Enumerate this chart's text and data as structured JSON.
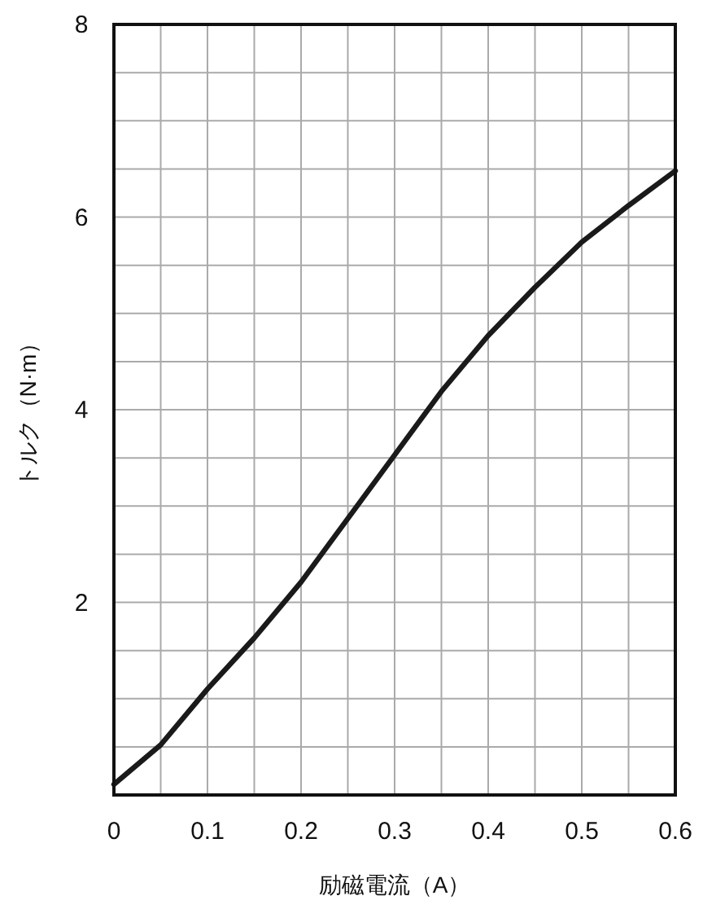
{
  "chart_data": {
    "type": "line",
    "xlabel": "励磁電流（A）",
    "ylabel": "トルク（N·m）",
    "x": [
      0,
      0.05,
      0.1,
      0.15,
      0.2,
      0.25,
      0.3,
      0.35,
      0.4,
      0.45,
      0.5,
      0.55,
      0.6
    ],
    "series": [
      {
        "color": "#1a1a1a",
        "values": [
          0.11,
          0.52,
          1.1,
          1.63,
          2.21,
          2.87,
          3.53,
          4.19,
          4.77,
          5.27,
          5.74,
          6.12,
          6.48
        ]
      }
    ],
    "xlim": [
      0,
      0.6
    ],
    "xticks": [
      0,
      {
        "value": 0.05,
        "label": null
      },
      0.1,
      {
        "value": 0.15,
        "label": null
      },
      0.2,
      {
        "value": 0.25,
        "label": null
      },
      0.3,
      {
        "value": 0.35,
        "label": null
      },
      0.4,
      {
        "value": 0.45,
        "label": null
      },
      0.5,
      {
        "value": 0.55,
        "label": null
      },
      0.6
    ],
    "ylim": [
      0,
      8
    ],
    "yticks": [
      {
        "value": 0.5,
        "label": null
      },
      {
        "value": 1,
        "label": null
      },
      {
        "value": 1.5,
        "label": null
      },
      2,
      {
        "value": 2.5,
        "label": null
      },
      {
        "value": 3,
        "label": null
      },
      {
        "value": 3.5,
        "label": null
      },
      4,
      {
        "value": 4.5,
        "label": null
      },
      {
        "value": 5,
        "label": null
      },
      {
        "value": 5.5,
        "label": null
      },
      6,
      {
        "value": 6.5,
        "label": null
      },
      {
        "value": 7,
        "label": null
      },
      {
        "value": 7.5,
        "label": null
      },
      8
    ],
    "grid": true,
    "line_style": "solid"
  }
}
